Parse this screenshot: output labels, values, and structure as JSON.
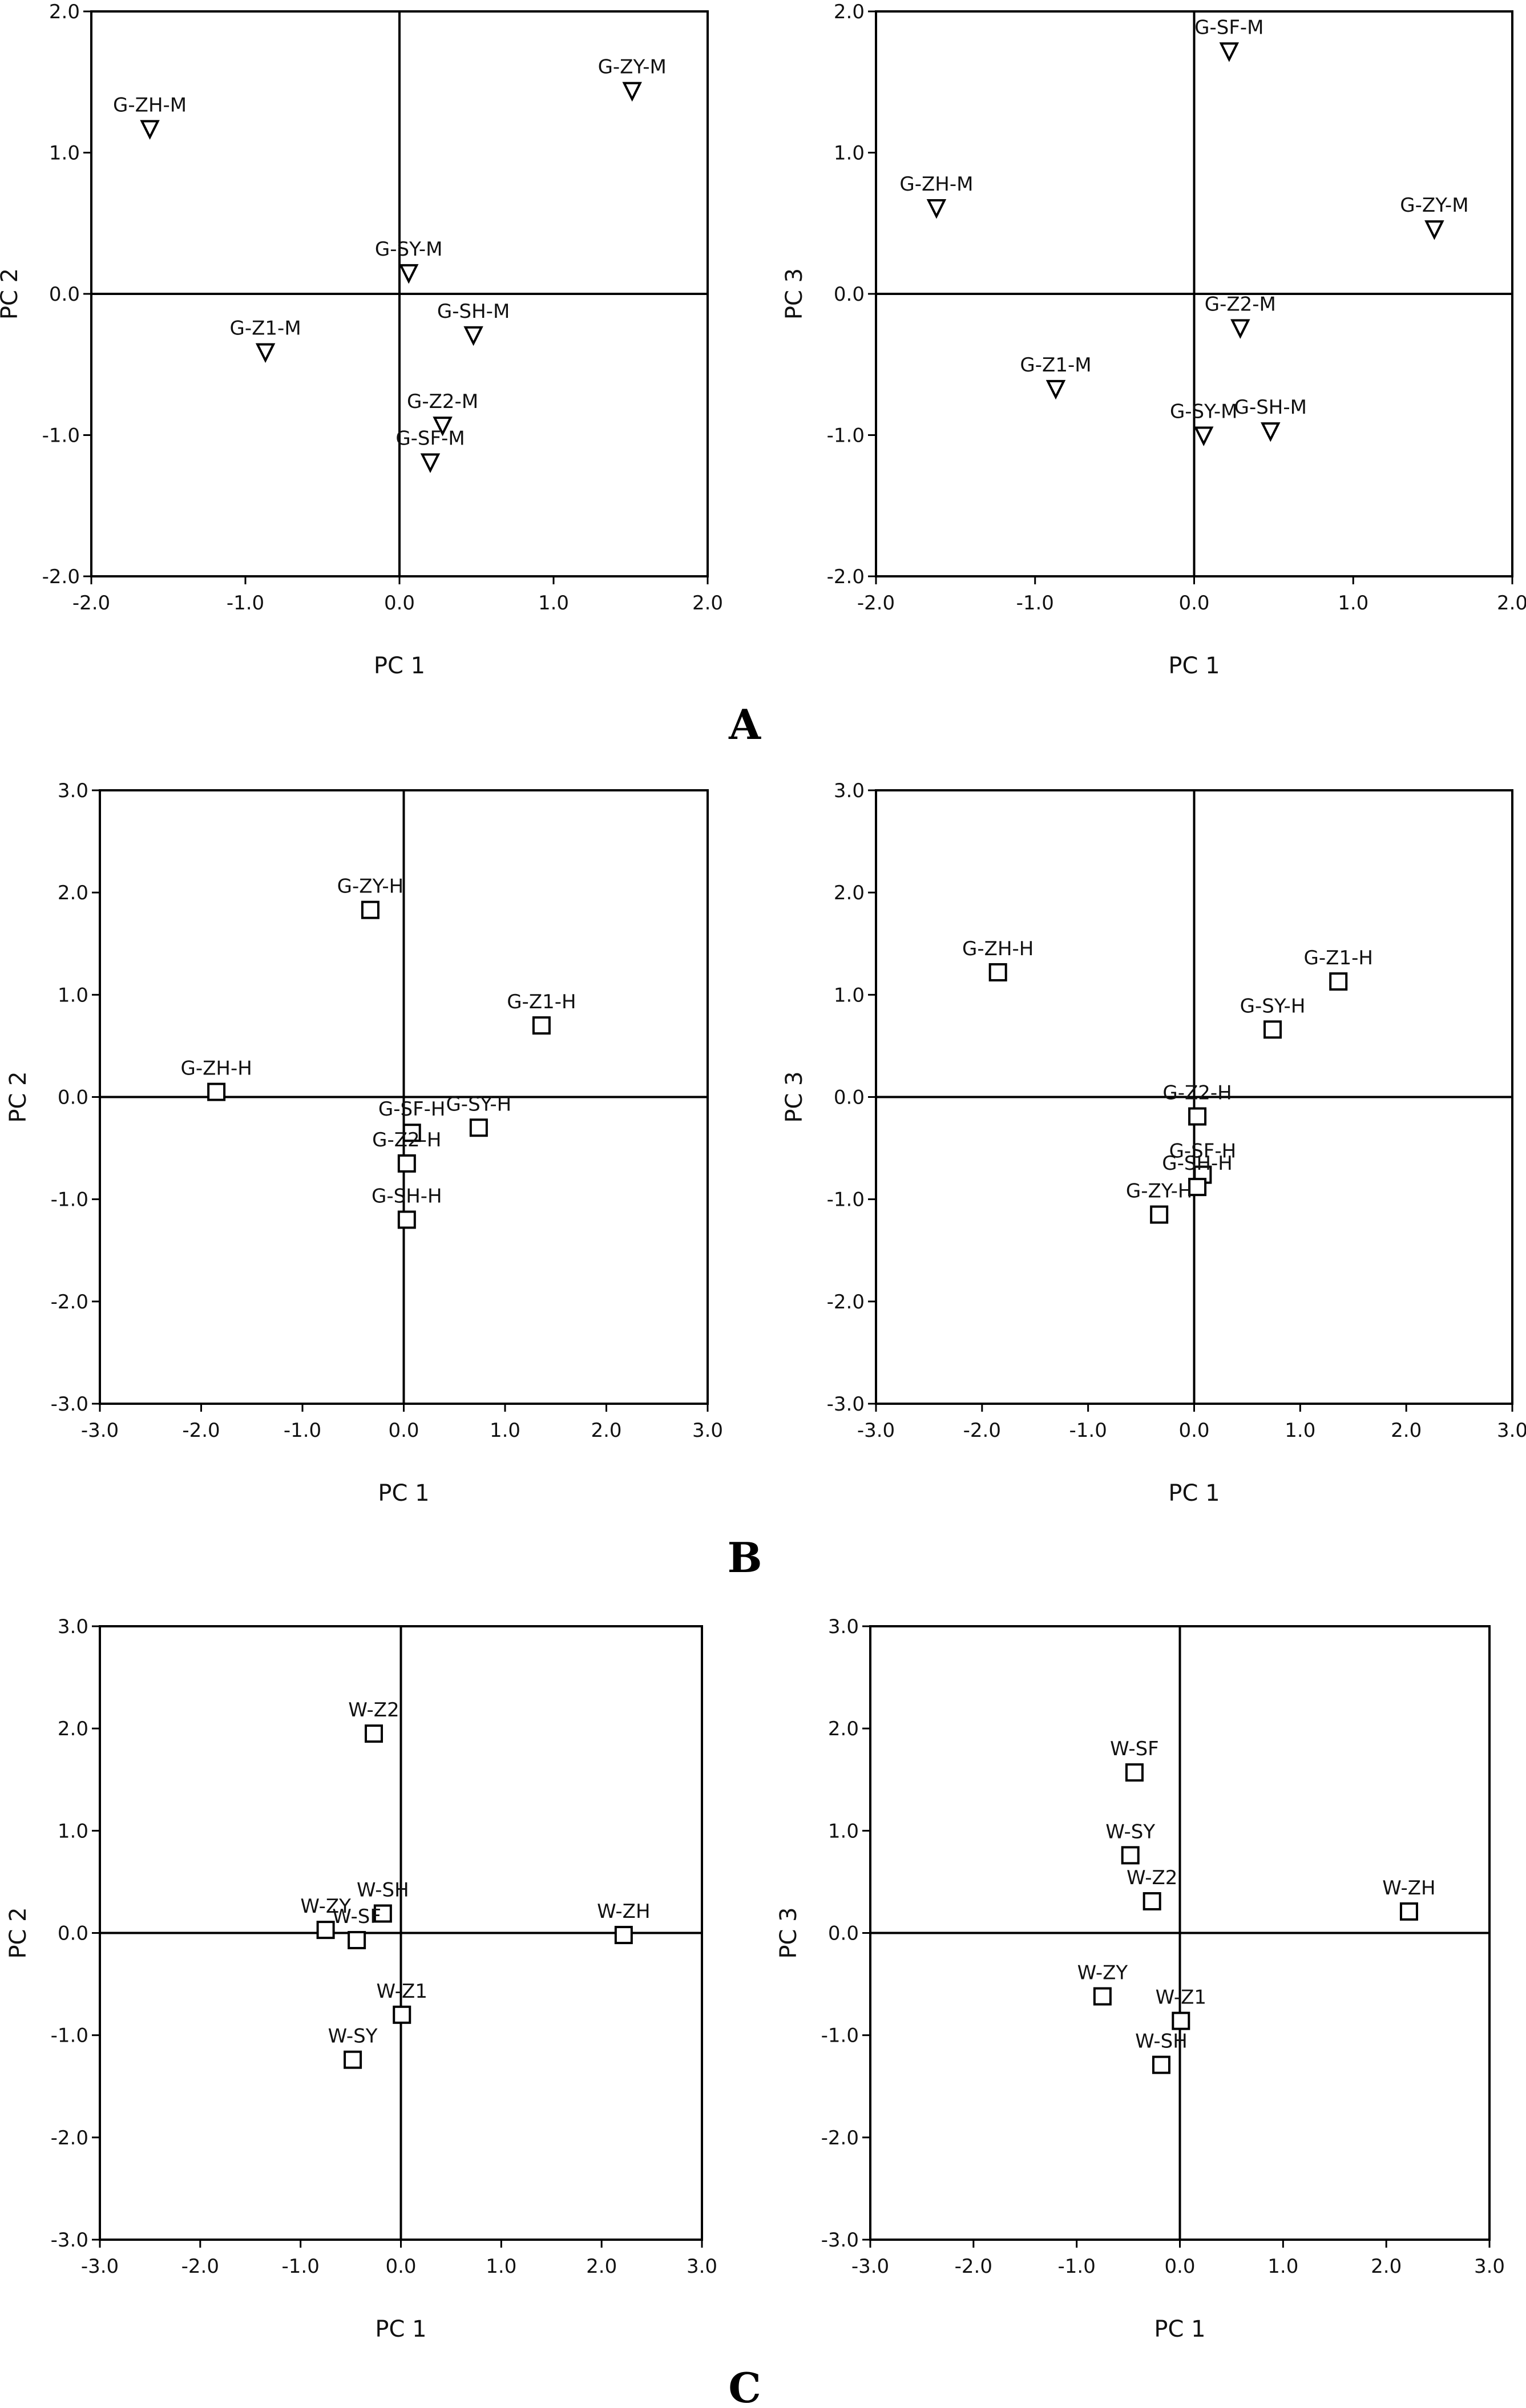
{
  "panel_labels": [
    "A",
    "B",
    "C"
  ],
  "chart_data": [
    {
      "type": "scatter",
      "panel": "A",
      "marker": "triangle-down",
      "xlabel": "PC 1",
      "ylabel": "PC 2",
      "xlim": [
        -2.0,
        2.0
      ],
      "ylim": [
        -2.0,
        2.0
      ],
      "xticks": [
        "-2.0",
        "-1.0",
        "0.0",
        "1.0",
        "2.0"
      ],
      "yticks": [
        "-2.0",
        "-1.0",
        "0.0",
        "1.0",
        "2.0"
      ],
      "points": [
        {
          "label": "G-ZH-M",
          "x": -1.62,
          "y": 1.17
        },
        {
          "label": "G-ZY-M",
          "x": 1.51,
          "y": 1.44
        },
        {
          "label": "G-SY-M",
          "x": 0.06,
          "y": 0.15
        },
        {
          "label": "G-Z1-M",
          "x": -0.87,
          "y": -0.41
        },
        {
          "label": "G-SH-M",
          "x": 0.48,
          "y": -0.29
        },
        {
          "label": "G-Z2-M",
          "x": 0.28,
          "y": -0.93
        },
        {
          "label": "G-SF-M",
          "x": 0.2,
          "y": -1.19
        }
      ]
    },
    {
      "type": "scatter",
      "panel": "A",
      "marker": "triangle-down",
      "xlabel": "PC 1",
      "ylabel": "PC 3",
      "xlim": [
        -2.0,
        2.0
      ],
      "ylim": [
        -2.0,
        2.0
      ],
      "xticks": [
        "-2.0",
        "-1.0",
        "0.0",
        "1.0",
        "2.0"
      ],
      "yticks": [
        "-2.0",
        "-1.0",
        "0.0",
        "1.0",
        "2.0"
      ],
      "points": [
        {
          "label": "G-SF-M",
          "x": 0.22,
          "y": 1.72
        },
        {
          "label": "G-ZH-M",
          "x": -1.62,
          "y": 0.61
        },
        {
          "label": "G-ZY-M",
          "x": 1.51,
          "y": 0.46
        },
        {
          "label": "G-Z2-M",
          "x": 0.29,
          "y": -0.24
        },
        {
          "label": "G-Z1-M",
          "x": -0.87,
          "y": -0.67
        },
        {
          "label": "G-SY-M",
          "x": 0.06,
          "y": -1.0
        },
        {
          "label": "G-SH-M",
          "x": 0.48,
          "y": -0.97
        }
      ]
    },
    {
      "type": "scatter",
      "panel": "B",
      "marker": "square",
      "xlabel": "PC 1",
      "ylabel": "PC 2",
      "xlim": [
        -3.0,
        3.0
      ],
      "ylim": [
        -3.0,
        3.0
      ],
      "xticks": [
        "-3.0",
        "-2.0",
        "-1.0",
        "0.0",
        "1.0",
        "2.0",
        "3.0"
      ],
      "yticks": [
        "-3.0",
        "-2.0",
        "-1.0",
        "0.0",
        "1.0",
        "2.0",
        "3.0"
      ],
      "points": [
        {
          "label": "G-ZY-H",
          "x": -0.33,
          "y": 1.83
        },
        {
          "label": "G-Z1-H",
          "x": 1.36,
          "y": 0.7
        },
        {
          "label": "G-ZH-H",
          "x": -1.85,
          "y": 0.05
        },
        {
          "label": "G-SF-H",
          "x": 0.08,
          "y": -0.35
        },
        {
          "label": "G-SY-H",
          "x": 0.74,
          "y": -0.3
        },
        {
          "label": "G-Z2-H",
          "x": 0.03,
          "y": -0.65
        },
        {
          "label": "G-SH-H",
          "x": 0.03,
          "y": -1.2
        }
      ]
    },
    {
      "type": "scatter",
      "panel": "B",
      "marker": "square",
      "xlabel": "PC 1",
      "ylabel": "PC 3",
      "xlim": [
        -3.0,
        3.0
      ],
      "ylim": [
        -3.0,
        3.0
      ],
      "xticks": [
        "-3.0",
        "-2.0",
        "-1.0",
        "0.0",
        "1.0",
        "2.0",
        "3.0"
      ],
      "yticks": [
        "-3.0",
        "-2.0",
        "-1.0",
        "0.0",
        "1.0",
        "2.0",
        "3.0"
      ],
      "points": [
        {
          "label": "G-ZH-H",
          "x": -1.85,
          "y": 1.22
        },
        {
          "label": "G-Z1-H",
          "x": 1.36,
          "y": 1.13
        },
        {
          "label": "G-SY-H",
          "x": 0.74,
          "y": 0.66
        },
        {
          "label": "G-Z2-H",
          "x": 0.03,
          "y": -0.19
        },
        {
          "label": "G-SF-H",
          "x": 0.08,
          "y": -0.76
        },
        {
          "label": "G-SH-H",
          "x": 0.03,
          "y": -0.88
        },
        {
          "label": "G-ZY-H",
          "x": -0.33,
          "y": -1.15
        }
      ]
    },
    {
      "type": "scatter",
      "panel": "C",
      "marker": "square",
      "xlabel": "PC 1",
      "ylabel": "PC 2",
      "xlim": [
        -3.0,
        3.0
      ],
      "ylim": [
        -3.0,
        3.0
      ],
      "xticks": [
        "-3.0",
        "-2.0",
        "-1.0",
        "0.0",
        "1.0",
        "2.0",
        "3.0"
      ],
      "yticks": [
        "-3.0",
        "-2.0",
        "-1.0",
        "0.0",
        "1.0",
        "2.0",
        "3.0"
      ],
      "points": [
        {
          "label": "W-Z2",
          "x": -0.27,
          "y": 1.95
        },
        {
          "label": "W-SH",
          "x": -0.18,
          "y": 0.19
        },
        {
          "label": "W-ZY",
          "x": -0.75,
          "y": 0.03
        },
        {
          "label": "W-SF",
          "x": -0.44,
          "y": -0.07
        },
        {
          "label": "W-ZH",
          "x": 2.22,
          "y": -0.02
        },
        {
          "label": "W-Z1",
          "x": 0.01,
          "y": -0.8
        },
        {
          "label": "W-SY",
          "x": -0.48,
          "y": -1.24
        }
      ]
    },
    {
      "type": "scatter",
      "panel": "C",
      "marker": "square",
      "xlabel": "PC 1",
      "ylabel": "PC 3",
      "xlim": [
        -3.0,
        3.0
      ],
      "ylim": [
        -3.0,
        3.0
      ],
      "xticks": [
        "-3.0",
        "-2.0",
        "-1.0",
        "0.0",
        "1.0",
        "2.0",
        "3.0"
      ],
      "yticks": [
        "-3.0",
        "-2.0",
        "-1.0",
        "0.0",
        "1.0",
        "2.0",
        "3.0"
      ],
      "points": [
        {
          "label": "W-SF",
          "x": -0.44,
          "y": 1.57
        },
        {
          "label": "W-SY",
          "x": -0.48,
          "y": 0.76
        },
        {
          "label": "W-Z2",
          "x": -0.27,
          "y": 0.31
        },
        {
          "label": "W-ZH",
          "x": 2.22,
          "y": 0.21
        },
        {
          "label": "W-ZY",
          "x": -0.75,
          "y": -0.62
        },
        {
          "label": "W-Z1",
          "x": 0.01,
          "y": -0.86
        },
        {
          "label": "W-SH",
          "x": -0.18,
          "y": -1.29
        }
      ]
    }
  ]
}
